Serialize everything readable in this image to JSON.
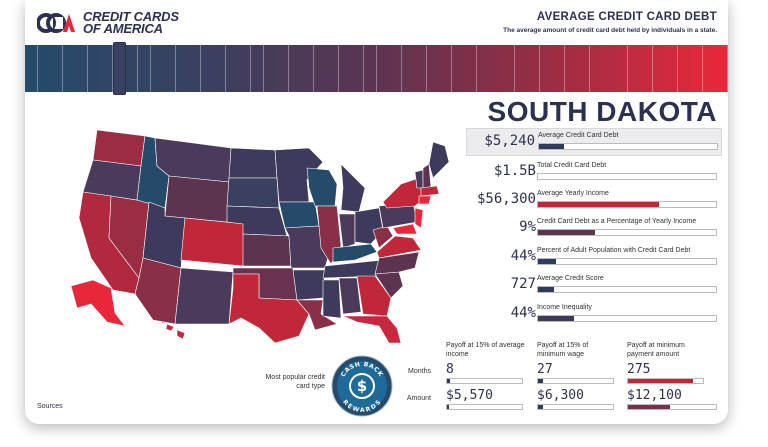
{
  "brand": {
    "name_line1": "CREDIT CARDS",
    "name_line2": "OF AMERICA"
  },
  "header": {
    "title": "AVERAGE CREDIT CARD DEBT",
    "subtitle": "The average amount of credit card debt held by individuals in a state."
  },
  "state": {
    "name": "SOUTH DAKOTA"
  },
  "stats": [
    {
      "value": "$5,240",
      "label": "Average Credit Card Debt",
      "fill": 0.14,
      "color": "#2f3b5a",
      "highlight": true
    },
    {
      "value": "$1.5B",
      "label": "Total Credit Card Debt",
      "fill": 0.0,
      "color": "#2f3b5a",
      "highlight": false
    },
    {
      "value": "$56,300",
      "label": "Average Yearly Income",
      "fill": 0.68,
      "color": "#c0283a",
      "highlight": false
    },
    {
      "value": "9%",
      "label": "Credit Card Debt as a Percentage of Yearly Income",
      "fill": 0.32,
      "color": "#5c3450",
      "highlight": false
    },
    {
      "value": "44%",
      "label": "Percent of Adult Population with Credit Card Debt",
      "fill": 0.1,
      "color": "#2f3b5a",
      "highlight": false
    },
    {
      "value": "727",
      "label": "Average Credit Score",
      "fill": 0.09,
      "color": "#2f3b5a",
      "highlight": false
    },
    {
      "value": "44%",
      "label": "Income Inequality",
      "fill": 0.2,
      "color": "#3d3a5c",
      "highlight": false
    }
  ],
  "payoff": {
    "columns": [
      {
        "heading": "Payoff at 15% of average income",
        "months": "8",
        "months_fill": 0.04,
        "amount": "$5,570",
        "amount_fill": 0.03,
        "color": "#2f3b5a"
      },
      {
        "heading": "Payoff at 15% of minimum wage",
        "months": "27",
        "months_fill": 0.07,
        "amount": "$6,300",
        "amount_fill": 0.07,
        "color": "#2f3b5a"
      },
      {
        "heading": "Payoff at minimum payment amount",
        "months": "275",
        "months_fill": 0.87,
        "amount": "$12,100",
        "amount_fill": 0.48,
        "color": "#c0283a",
        "amount_color": "#7e2d4a"
      }
    ],
    "row_months": "Months",
    "row_amount": "Amount"
  },
  "credit_card": {
    "label": "Most popular credit card type",
    "badge_top": "CASH BACK",
    "badge_bottom": "REWARDS"
  },
  "footer": {
    "sources": "Sources"
  },
  "colors": {
    "navy": "#2d3150",
    "blue": "#264a6a",
    "red": "#e8283a",
    "purple": "#4a3a5c"
  }
}
